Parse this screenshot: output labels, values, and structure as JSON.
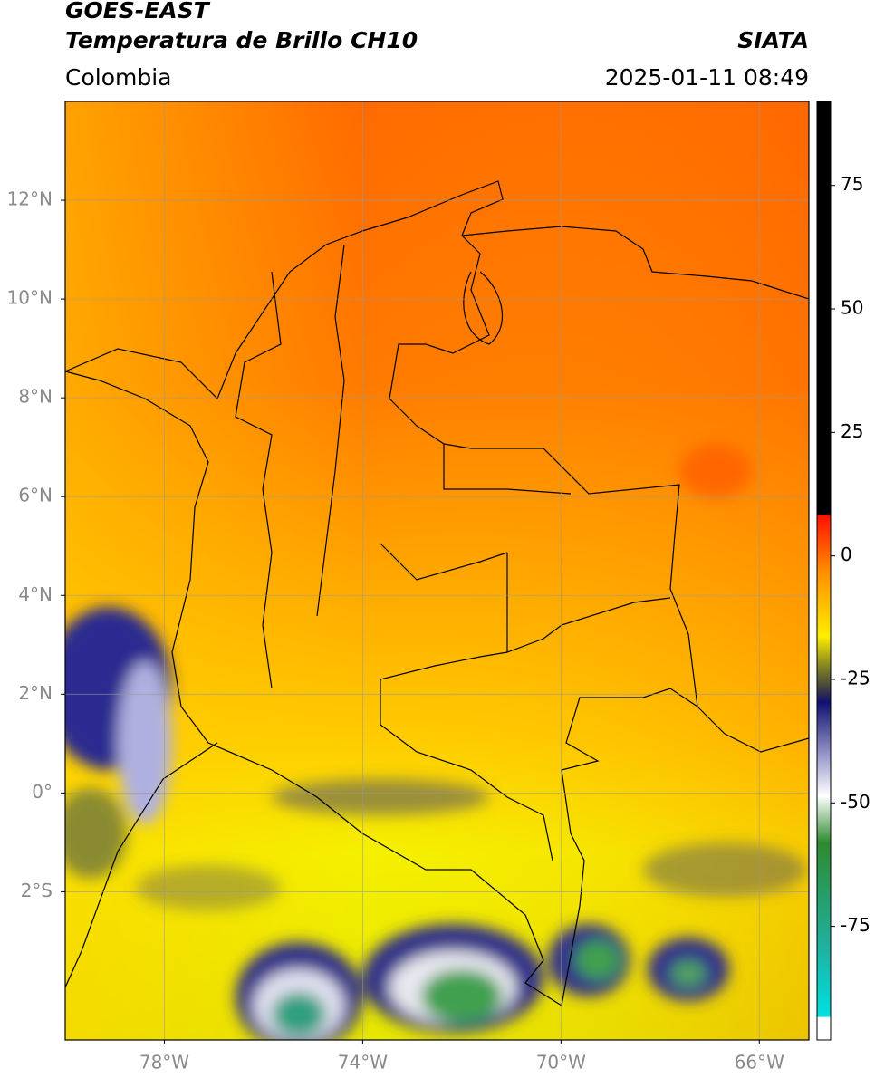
{
  "header": {
    "title": "GOES-EAST",
    "subtitle": "Temperatura de Brillo CH10",
    "source": "SIATA",
    "region": "Colombia",
    "timestamp": "2025-01-11 08:49"
  },
  "map": {
    "xlim": [
      -80,
      -65
    ],
    "ylim": [
      -5,
      14
    ],
    "xticks": [
      {
        "value": -78,
        "label": "78°W"
      },
      {
        "value": -74,
        "label": "74°W"
      },
      {
        "value": -70,
        "label": "70°W"
      },
      {
        "value": -66,
        "label": "66°W"
      }
    ],
    "yticks": [
      {
        "value": 12,
        "label": "12°N"
      },
      {
        "value": 10,
        "label": "10°N"
      },
      {
        "value": 8,
        "label": "8°N"
      },
      {
        "value": 6,
        "label": "6°N"
      },
      {
        "value": 4,
        "label": "4°N"
      },
      {
        "value": 2,
        "label": "2°N"
      },
      {
        "value": 0,
        "label": "0°"
      },
      {
        "value": -2,
        "label": "2°S"
      }
    ],
    "grid": true
  },
  "colorbar": {
    "lim": [
      -98,
      92
    ],
    "ticks": [
      75,
      50,
      25,
      0,
      -25,
      -50,
      -75
    ]
  }
}
